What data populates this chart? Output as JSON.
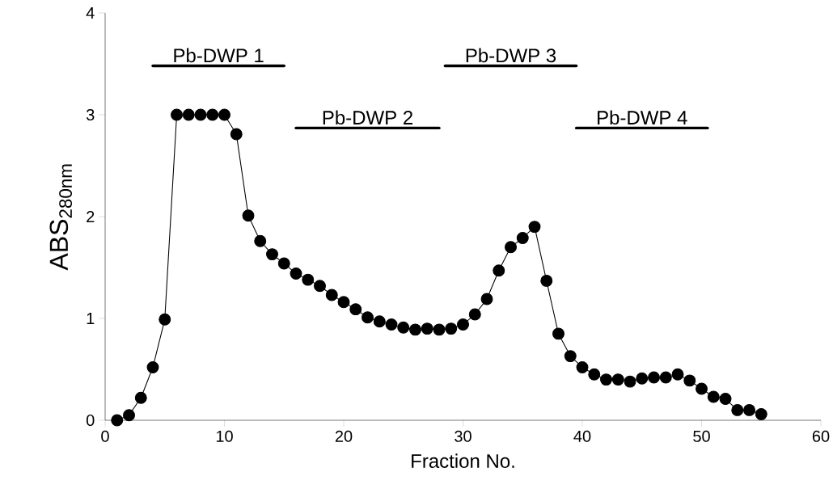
{
  "chart_data": {
    "type": "line",
    "xlabel": "Fraction No.",
    "ylabel": "ABS$_{280nm}$",
    "x": [
      1,
      2,
      3,
      4,
      5,
      6,
      7,
      8,
      9,
      10,
      11,
      12,
      13,
      14,
      15,
      16,
      17,
      18,
      19,
      20,
      21,
      22,
      23,
      24,
      25,
      26,
      27,
      28,
      29,
      30,
      31,
      32,
      33,
      34,
      35,
      36,
      37,
      38,
      39,
      40,
      41,
      42,
      43,
      44,
      45,
      46,
      47,
      48,
      49,
      50,
      51,
      52,
      53,
      54,
      55
    ],
    "series": [
      {
        "color": "#000000",
        "values": [
          0.0,
          0.05,
          0.22,
          0.52,
          0.99,
          3.0,
          3.0,
          3.0,
          3.0,
          3.0,
          2.81,
          2.01,
          1.76,
          1.63,
          1.54,
          1.44,
          1.38,
          1.32,
          1.23,
          1.16,
          1.09,
          1.01,
          0.97,
          0.94,
          0.91,
          0.89,
          0.9,
          0.89,
          0.9,
          0.94,
          1.04,
          1.19,
          1.47,
          1.7,
          1.79,
          1.9,
          1.37,
          0.85,
          0.63,
          0.52,
          0.45,
          0.4,
          0.4,
          0.38,
          0.41,
          0.42,
          0.42,
          0.45,
          0.39,
          0.31,
          0.23,
          0.21,
          0.1,
          0.1,
          0.06
        ]
      },
      {
        "name": "Pb-DWP 1",
        "color": "#000000",
        "marker": "none",
        "x": [
          4,
          15
        ],
        "values": [
          3.48,
          3.48
        ]
      },
      {
        "name": "Pb-DWP 2",
        "color": "#000000",
        "marker": "none",
        "x": [
          16,
          28
        ],
        "values": [
          2.87,
          2.87
        ]
      },
      {
        "name": "Pb-DWP 3",
        "color": "#000000",
        "marker": "none",
        "x": [
          28.5,
          39.5
        ],
        "values": [
          3.48,
          3.48
        ]
      },
      {
        "name": "Pb-DWP 4",
        "color": "#000000",
        "marker": "none",
        "x": [
          39.5,
          50.5
        ],
        "values": [
          2.87,
          2.87
        ]
      }
    ],
    "xlim": [
      0,
      60
    ],
    "xticks": [
      0,
      10,
      20,
      30,
      40,
      50,
      60
    ],
    "ylim": [
      0,
      4
    ],
    "yticks": [
      0,
      1,
      2,
      3,
      4
    ],
    "marker": "circle",
    "line_style": "solid",
    "grid": false,
    "legend": false
  }
}
